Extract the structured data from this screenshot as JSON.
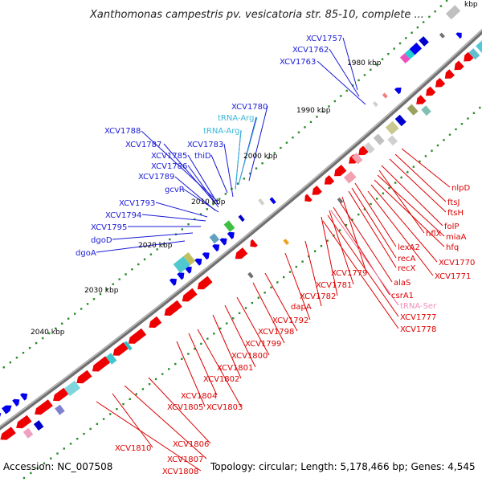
{
  "title": "Xanthomonas campestris pv. vesicatoria str. 85-10, complete ...",
  "title_edge_kbp": "kbp",
  "footer": {
    "accession": "Accession: NC_007508",
    "info": "Topology: circular; Length: 5,178,466 bp; Genes: 4,545"
  },
  "colors": {
    "forward_gene": "#0000ee",
    "reverse_gene": "#ee0000",
    "backbone": "#707070",
    "tick_dots": "#2a8a2a",
    "label_blue": "#1a1ad6",
    "label_cyan": "#3ab8d8",
    "label_red": "#dd0000",
    "label_pink": "#f090b8"
  },
  "kbp_marks": [
    "1980 kbp",
    "1990 kbp",
    "2000 kbp",
    "2010 kbp",
    "2020 kbp",
    "2030 kbp",
    "2040 kbp"
  ],
  "labels_forward": [
    {
      "text": "XCV1757",
      "kind": "blue"
    },
    {
      "text": "XCV1762",
      "kind": "blue"
    },
    {
      "text": "XCV1763",
      "kind": "blue"
    },
    {
      "text": "XCV1780",
      "kind": "blue"
    },
    {
      "text": "tRNA-Arg",
      "kind": "cyan"
    },
    {
      "text": "tRNA-Arg",
      "kind": "cyan"
    },
    {
      "text": "XCV1788",
      "kind": "blue"
    },
    {
      "text": "XCV1787",
      "kind": "blue"
    },
    {
      "text": "XCV1783",
      "kind": "blue"
    },
    {
      "text": "XCV1785",
      "kind": "blue"
    },
    {
      "text": "thiD",
      "kind": "blue"
    },
    {
      "text": "XCV1786",
      "kind": "blue"
    },
    {
      "text": "XCV1789",
      "kind": "blue"
    },
    {
      "text": "gcvR",
      "kind": "blue"
    },
    {
      "text": "XCV1793",
      "kind": "blue"
    },
    {
      "text": "XCV1794",
      "kind": "blue"
    },
    {
      "text": "XCV1795",
      "kind": "blue"
    },
    {
      "text": "dgoD",
      "kind": "blue"
    },
    {
      "text": "dgoA",
      "kind": "blue"
    }
  ],
  "labels_reverse": [
    {
      "text": "nlpD",
      "kind": "red"
    },
    {
      "text": "ftsJ",
      "kind": "red"
    },
    {
      "text": "ftsH",
      "kind": "red"
    },
    {
      "text": "folP",
      "kind": "red"
    },
    {
      "text": "hflX",
      "kind": "red"
    },
    {
      "text": "miaA",
      "kind": "red"
    },
    {
      "text": "hfq",
      "kind": "red"
    },
    {
      "text": "lexA2",
      "kind": "red"
    },
    {
      "text": "XCV1770",
      "kind": "red"
    },
    {
      "text": "recA",
      "kind": "red"
    },
    {
      "text": "recX",
      "kind": "red"
    },
    {
      "text": "XCV1771",
      "kind": "red"
    },
    {
      "text": "XCV1779",
      "kind": "red"
    },
    {
      "text": "alaS",
      "kind": "red"
    },
    {
      "text": "XCV1781",
      "kind": "red"
    },
    {
      "text": "csrA1",
      "kind": "red"
    },
    {
      "text": "XCV1782",
      "kind": "red"
    },
    {
      "text": "tRNA-Ser",
      "kind": "pink"
    },
    {
      "text": "XCV1777",
      "kind": "red"
    },
    {
      "text": "dapA",
      "kind": "red"
    },
    {
      "text": "XCV1778",
      "kind": "red"
    },
    {
      "text": "XCV1792",
      "kind": "red"
    },
    {
      "text": "XCV1798",
      "kind": "red"
    },
    {
      "text": "XCV1799",
      "kind": "red"
    },
    {
      "text": "XCV1800",
      "kind": "red"
    },
    {
      "text": "XCV1801",
      "kind": "red"
    },
    {
      "text": "XCV1802",
      "kind": "red"
    },
    {
      "text": "XCV1804",
      "kind": "red"
    },
    {
      "text": "XCV1805",
      "kind": "red"
    },
    {
      "text": "XCV1803",
      "kind": "red"
    },
    {
      "text": "XCV1806",
      "kind": "red"
    },
    {
      "text": "XCV1810",
      "kind": "red"
    },
    {
      "text": "XCV1807",
      "kind": "red"
    },
    {
      "text": "XCV1808",
      "kind": "red"
    }
  ]
}
